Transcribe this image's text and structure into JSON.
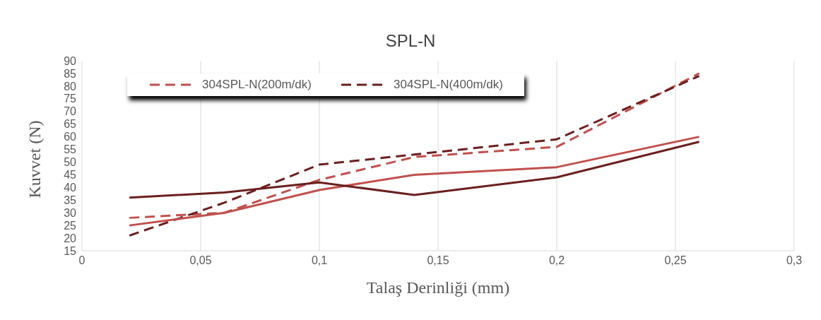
{
  "chart_data": {
    "type": "line",
    "title": "SPL-N",
    "xlabel": "Talaş Derinliği (mm)",
    "ylabel": "Kuvvet (N)",
    "x": [
      0.02,
      0.06,
      0.1,
      0.14,
      0.2,
      0.26
    ],
    "xlim": [
      0,
      0.3
    ],
    "xticks": [
      0,
      {
        "value": 0.05,
        "label": "0,05"
      },
      {
        "value": 0.1,
        "label": "0,1"
      },
      {
        "value": 0.15,
        "label": "0,15"
      },
      {
        "value": 0.2,
        "label": "0,2"
      },
      {
        "value": 0.25,
        "label": "0,25"
      },
      {
        "value": 0.3,
        "label": "0,3"
      }
    ],
    "ylim": [
      15,
      90
    ],
    "yticks": [
      15,
      20,
      25,
      30,
      35,
      40,
      45,
      50,
      55,
      60,
      65,
      70,
      75,
      80,
      85,
      90
    ],
    "grid": "x",
    "legend": "top left",
    "marker": "none",
    "series": [
      {
        "name": "304SPL-N(200m/dk)",
        "color": "#c0504d",
        "line_style": "dashed",
        "values": [
          28,
          30,
          43,
          52,
          56,
          85
        ]
      },
      {
        "name": "304SPL-N(400m/dk)",
        "color": "#6b1f1f",
        "line_style": "dashed",
        "values": [
          21,
          34,
          49,
          53,
          59,
          84
        ]
      },
      {
        "color": "#c0504d",
        "line_style": "solid",
        "values": [
          25,
          30,
          39,
          45,
          48,
          60
        ]
      },
      {
        "color": "#6b1f1f",
        "line_style": "solid",
        "values": [
          36,
          38,
          42,
          37,
          44,
          58
        ]
      }
    ]
  }
}
